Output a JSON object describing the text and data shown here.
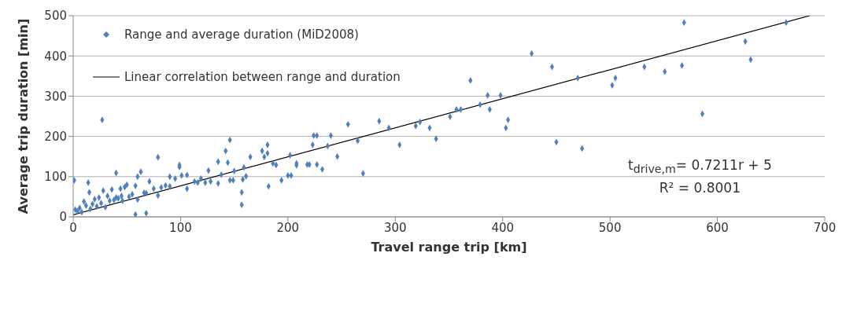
{
  "chart_data": {
    "type": "scatter",
    "xlabel": "Travel range trip [km]",
    "ylabel": "Average trip duration [min]",
    "xlim": [
      0,
      700
    ],
    "xticks": [
      0,
      100,
      200,
      300,
      400,
      500,
      600,
      700
    ],
    "ylim": [
      0,
      500
    ],
    "yticks": [
      0,
      100,
      200,
      300,
      400,
      500
    ],
    "grid": "y",
    "legend": "top left",
    "annotations": [
      "t$_{drive,m}$= 0.7211r + 5",
      "R² = 0.8001"
    ],
    "series": [
      {
        "name": "Range and average duration (MiD2008)",
        "marker": "diamond",
        "color": "#4f81bd",
        "x": [
          1,
          2,
          4,
          6,
          8,
          10,
          12,
          14,
          15,
          16,
          18,
          20,
          22,
          24,
          26,
          27,
          28,
          30,
          32,
          34,
          36,
          38,
          40,
          40,
          42,
          44,
          45,
          46,
          48,
          50,
          52,
          55,
          58,
          58,
          60,
          60,
          63,
          66,
          68,
          68,
          71,
          75,
          79,
          79,
          82,
          86,
          90,
          90,
          95,
          99,
          99,
          101,
          106,
          106,
          113,
          116,
          119,
          123,
          126,
          128,
          135,
          135,
          138,
          142,
          144,
          146,
          146,
          149,
          150,
          157,
          157,
          158,
          159,
          161,
          165,
          176,
          178,
          181,
          181,
          182,
          186,
          189,
          194,
          200,
          202,
          203,
          208,
          208,
          218,
          220,
          223,
          224,
          227,
          227,
          232,
          237,
          240,
          246,
          256,
          265,
          270,
          285,
          294,
          304,
          319,
          323,
          332,
          338,
          351,
          357,
          361,
          370,
          379,
          386,
          388,
          398,
          403,
          405,
          427,
          446,
          450,
          470,
          474,
          502,
          505,
          532,
          551,
          567,
          569,
          586,
          626,
          631,
          664
        ],
        "values": [
          91,
          18,
          14,
          22,
          12,
          38,
          28,
          85,
          61,
          20,
          32,
          44,
          26,
          48,
          34,
          241,
          65,
          24,
          52,
          40,
          68,
          42,
          109,
          48,
          46,
          70,
          52,
          40,
          74,
          80,
          50,
          56,
          77,
          6,
          43,
          100,
          112,
          60,
          9,
          59,
          88,
          70,
          53,
          148,
          73,
          78,
          76,
          100,
          95,
          124,
          129,
          103,
          104,
          70,
          88,
          85,
          95,
          85,
          115,
          88,
          137,
          83,
          105,
          164,
          135,
          91,
          191,
          91,
          114,
          61,
          30,
          93,
          123,
          101,
          149,
          164,
          149,
          158,
          179,
          76,
          133,
          129,
          91,
          103,
          153,
          103,
          133,
          128,
          130,
          130,
          179,
          202,
          202,
          130,
          118,
          176,
          202,
          150,
          230,
          189,
          108,
          238,
          221,
          179,
          226,
          236,
          221,
          194,
          249,
          267,
          267,
          339,
          279,
          302,
          267,
          302,
          221,
          241,
          406,
          373,
          186,
          345,
          170,
          327,
          345,
          373,
          361,
          376,
          483,
          256,
          436,
          391,
          483
        ]
      },
      {
        "name": "Linear correlation between range and duration",
        "type": "line",
        "color": "#000000",
        "x": [
          0,
          686
        ],
        "values": [
          5,
          500
        ]
      }
    ]
  }
}
